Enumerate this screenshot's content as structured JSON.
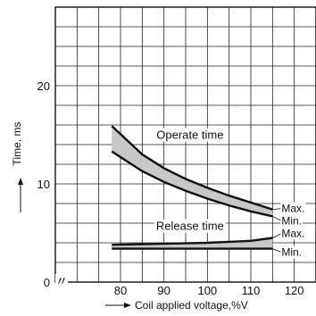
{
  "chart_data": {
    "type": "line",
    "title": "",
    "xlabel": "Coil applied voltage,%V",
    "ylabel": "Time, ms",
    "xlim": [
      65,
      125
    ],
    "ylim": [
      0,
      28
    ],
    "x_ticks": [
      80,
      90,
      100,
      110,
      120
    ],
    "x_tick_labels": [
      "80",
      "90",
      "100",
      "110",
      "120"
    ],
    "y_ticks": [
      0,
      10,
      20
    ],
    "y_tick_labels": [
      "0",
      "10",
      "20"
    ],
    "axis_break_mark": "〃",
    "grid": true,
    "grid_x_step": 5,
    "grid_y_step": 2,
    "series": [
      {
        "name": "Max.",
        "group": "Operate time",
        "x": [
          78,
          85,
          90,
          95,
          100,
          105,
          110,
          115
        ],
        "y": [
          15.9,
          13.0,
          11.6,
          10.5,
          9.6,
          8.8,
          8.1,
          7.4
        ]
      },
      {
        "name": "Min.",
        "group": "Operate time",
        "x": [
          78,
          85,
          90,
          95,
          100,
          105,
          110,
          115
        ],
        "y": [
          13.3,
          11.3,
          10.2,
          9.3,
          8.5,
          7.8,
          7.2,
          6.7
        ]
      },
      {
        "name": "Max.",
        "group": "Release time",
        "x": [
          78,
          90,
          100,
          110,
          115
        ],
        "y": [
          3.8,
          3.9,
          4.0,
          4.2,
          4.5
        ]
      },
      {
        "name": "Min.",
        "group": "Release time",
        "x": [
          78,
          90,
          100,
          110,
          115
        ],
        "y": [
          3.4,
          3.4,
          3.4,
          3.4,
          3.4
        ]
      }
    ],
    "annotations": [
      {
        "text": "Operate time",
        "x": 96,
        "y": 14.6
      },
      {
        "text": "Release time",
        "x": 96,
        "y": 5.3
      }
    ]
  }
}
